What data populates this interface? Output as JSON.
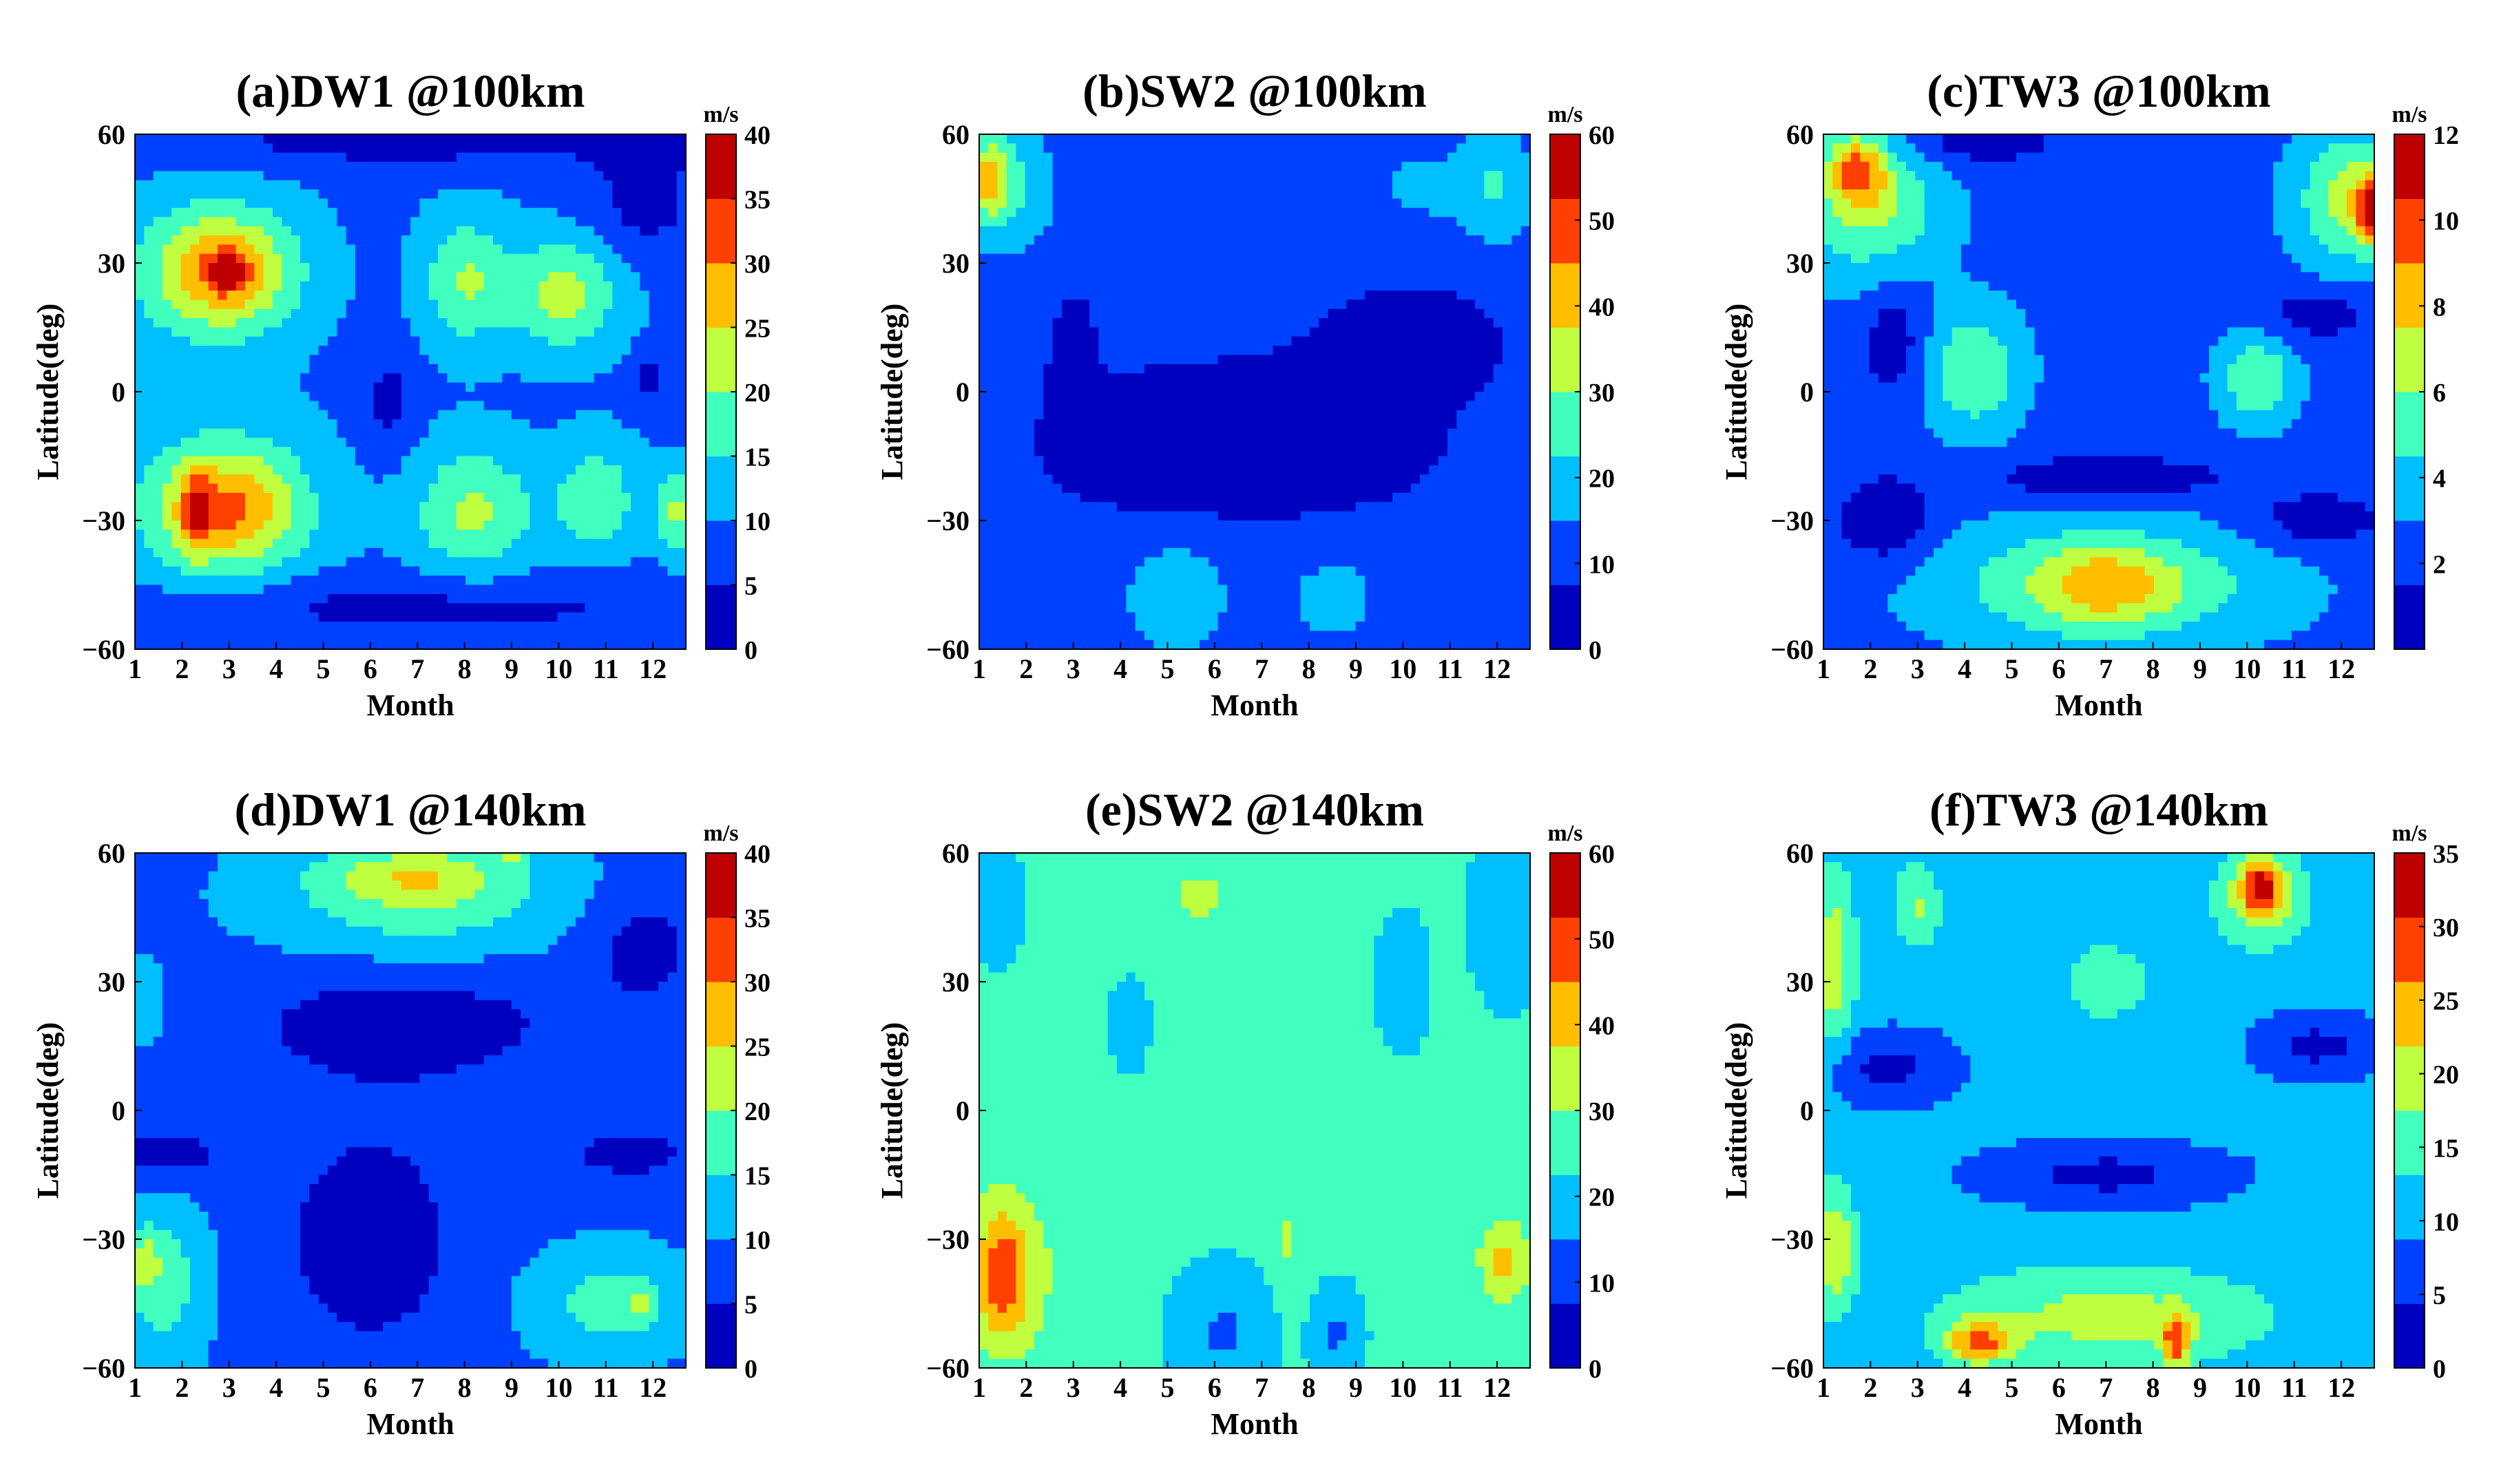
{
  "figure": {
    "colormap": "jet"
  },
  "chart_data": [
    {
      "id": "a",
      "type": "heatmap",
      "title": "(a)DW1 @100km",
      "xlabel": "Month",
      "ylabel": "Latitude(deg)",
      "xlim": [
        1,
        12.7
      ],
      "ylim": [
        -60,
        60
      ],
      "xticks": [
        "1",
        "2",
        "3",
        "4",
        "5",
        "6",
        "7",
        "8",
        "9",
        "10",
        "11",
        "12"
      ],
      "yticks": [
        "-60",
        "-30",
        "0",
        "30",
        "60"
      ],
      "colorbar": {
        "unit": "m/s",
        "min": 0,
        "max": 40,
        "ticks": [
          "0",
          "5",
          "10",
          "15",
          "20",
          "25",
          "30",
          "35",
          "40"
        ]
      },
      "background": 9,
      "blobs": [
        {
          "x": 1.0,
          "y": -58,
          "rx": 14,
          "ry": 5,
          "v": 0
        },
        {
          "x": 7.0,
          "y": -50,
          "rx": 6,
          "ry": 7,
          "v": -6
        },
        {
          "x": 7.0,
          "y": 58,
          "rx": 6,
          "ry": 6,
          "v": -6
        },
        {
          "x": 11.8,
          "y": 45,
          "rx": 1.2,
          "ry": 15,
          "v": -6
        },
        {
          "x": 2.7,
          "y": 28,
          "rx": 1.8,
          "ry": 17,
          "v": 14
        },
        {
          "x": 3.0,
          "y": 28,
          "rx": 1.2,
          "ry": 11,
          "v": 9
        },
        {
          "x": 3.0,
          "y": 28,
          "rx": 0.4,
          "ry": 4,
          "v": 12
        },
        {
          "x": 2.9,
          "y": -27,
          "rx": 1.9,
          "ry": 18,
          "v": 14
        },
        {
          "x": 3.0,
          "y": -27,
          "rx": 1.3,
          "ry": 11,
          "v": 9
        },
        {
          "x": 2.3,
          "y": -28,
          "rx": 0.3,
          "ry": 9,
          "v": 12
        },
        {
          "x": 8.0,
          "y": 26,
          "rx": 0.9,
          "ry": 15,
          "v": 11
        },
        {
          "x": 10.1,
          "y": 23,
          "rx": 1.2,
          "ry": 13,
          "v": 13
        },
        {
          "x": 8.2,
          "y": -28,
          "rx": 1.3,
          "ry": 15,
          "v": 12
        },
        {
          "x": 10.8,
          "y": -25,
          "rx": 0.9,
          "ry": 13,
          "v": 10
        },
        {
          "x": 12.5,
          "y": -28,
          "rx": 0.4,
          "ry": 10,
          "v": 12
        },
        {
          "x": 6.4,
          "y": -2,
          "rx": 0.5,
          "ry": 12,
          "v": -6
        },
        {
          "x": 11.9,
          "y": 3,
          "rx": 0.3,
          "ry": 6,
          "v": -6
        }
      ]
    },
    {
      "id": "b",
      "type": "heatmap",
      "title": "(b)SW2 @100km",
      "xlabel": "Month",
      "ylabel": "Latitude(deg)",
      "xlim": [
        1,
        12.7
      ],
      "ylim": [
        -60,
        60
      ],
      "xticks": [
        "1",
        "2",
        "3",
        "4",
        "5",
        "6",
        "7",
        "8",
        "9",
        "10",
        "11",
        "12"
      ],
      "yticks": [
        "-60",
        "-30",
        "0",
        "30",
        "60"
      ],
      "colorbar": {
        "unit": "m/s",
        "min": 0,
        "max": 60,
        "ticks": [
          "0",
          "10",
          "20",
          "30",
          "40",
          "50",
          "60"
        ]
      },
      "background": 10,
      "blobs": [
        {
          "x": 6.5,
          "y": -12,
          "rx": 4.0,
          "ry": 18,
          "v": -8
        },
        {
          "x": 10.2,
          "y": 12,
          "rx": 2.0,
          "ry": 13,
          "v": -6
        },
        {
          "x": 3.0,
          "y": 10,
          "rx": 0.5,
          "ry": 15,
          "v": -5
        },
        {
          "x": 1.6,
          "y": 48,
          "rx": 1.0,
          "ry": 16,
          "v": 14
        },
        {
          "x": 1.2,
          "y": 50,
          "rx": 0.4,
          "ry": 9,
          "v": 22
        },
        {
          "x": 12.0,
          "y": 48,
          "rx": 0.8,
          "ry": 14,
          "v": 13
        },
        {
          "x": 10.4,
          "y": 48,
          "rx": 1.0,
          "ry": 10,
          "v": 7
        },
        {
          "x": 5.2,
          "y": -48,
          "rx": 1.1,
          "ry": 13,
          "v": 12
        },
        {
          "x": 8.5,
          "y": -48,
          "rx": 1.1,
          "ry": 12,
          "v": 8
        },
        {
          "x": 1.4,
          "y": -45,
          "rx": 0.7,
          "ry": 14,
          "v": 5
        },
        {
          "x": 12.3,
          "y": -45,
          "rx": 0.5,
          "ry": 15,
          "v": 5
        }
      ]
    },
    {
      "id": "c",
      "type": "heatmap",
      "title": "(c)TW3 @100km",
      "xlabel": "Month",
      "ylabel": "Latitude(deg)",
      "xlim": [
        1,
        12.7
      ],
      "ylim": [
        -60,
        60
      ],
      "xticks": [
        "1",
        "2",
        "3",
        "4",
        "5",
        "6",
        "7",
        "8",
        "9",
        "10",
        "11",
        "12"
      ],
      "yticks": [
        "-60",
        "-30",
        "0",
        "30",
        "60"
      ],
      "colorbar": {
        "unit": "m/s",
        "min": 0,
        "max": 12,
        "ticks": [
          "2",
          "4",
          "6",
          "8",
          "10",
          "12"
        ]
      },
      "background": 2.5,
      "blobs": [
        {
          "x": 2.0,
          "y": 45,
          "rx": 1.5,
          "ry": 18,
          "v": 4.0
        },
        {
          "x": 1.7,
          "y": 52,
          "rx": 0.6,
          "ry": 8,
          "v": 4.5
        },
        {
          "x": 12.3,
          "y": 45,
          "rx": 1.2,
          "ry": 15,
          "v": 4.5
        },
        {
          "x": 12.6,
          "y": 42,
          "rx": 0.3,
          "ry": 7,
          "v": 5.5
        },
        {
          "x": 4.2,
          "y": 5,
          "rx": 1.0,
          "ry": 14,
          "v": 3.5
        },
        {
          "x": 10.2,
          "y": 3,
          "rx": 0.8,
          "ry": 10,
          "v": 3.5
        },
        {
          "x": 7.0,
          "y": -45,
          "rx": 3.5,
          "ry": 14,
          "v": 3.5
        },
        {
          "x": 7.0,
          "y": -45,
          "rx": 1.4,
          "ry": 9,
          "v": 3.0
        },
        {
          "x": 7.0,
          "y": -20,
          "rx": 2.5,
          "ry": 5,
          "v": -2.5
        },
        {
          "x": 2.5,
          "y": 12,
          "rx": 0.7,
          "ry": 14,
          "v": -2
        },
        {
          "x": 2.3,
          "y": -30,
          "rx": 1.0,
          "ry": 10,
          "v": -2.5
        },
        {
          "x": 4.0,
          "y": 58,
          "rx": 2.0,
          "ry": 6,
          "v": -2
        },
        {
          "x": 11.5,
          "y": 18,
          "rx": 1.2,
          "ry": 6,
          "v": -2
        },
        {
          "x": 11.5,
          "y": -30,
          "rx": 1.5,
          "ry": 7,
          "v": -2
        }
      ]
    },
    {
      "id": "d",
      "type": "heatmap",
      "title": "(d)DW1 @140km",
      "xlabel": "Month",
      "ylabel": "Latitude(deg)",
      "xlim": [
        1,
        12.7
      ],
      "ylim": [
        -60,
        60
      ],
      "xticks": [
        "1",
        "2",
        "3",
        "4",
        "5",
        "6",
        "7",
        "8",
        "9",
        "10",
        "11",
        "12"
      ],
      "yticks": [
        "-60",
        "-30",
        "0",
        "30",
        "60"
      ],
      "colorbar": {
        "unit": "m/s",
        "min": 0,
        "max": 40,
        "ticks": [
          "0",
          "5",
          "10",
          "15",
          "20",
          "25",
          "30",
          "35",
          "40"
        ]
      },
      "background": 9,
      "blobs": [
        {
          "x": 6.7,
          "y": 20,
          "rx": 3.5,
          "ry": 14,
          "v": -7
        },
        {
          "x": 6.0,
          "y": -30,
          "rx": 2.0,
          "ry": 28,
          "v": -7
        },
        {
          "x": 11.5,
          "y": -10,
          "rx": 1.5,
          "ry": 7,
          "v": -6
        },
        {
          "x": 1.7,
          "y": -10,
          "rx": 1.4,
          "ry": 7,
          "v": -6
        },
        {
          "x": 11.8,
          "y": 38,
          "rx": 1.2,
          "ry": 14,
          "v": -6
        },
        {
          "x": 7.0,
          "y": 50,
          "rx": 3.0,
          "ry": 14,
          "v": 10
        },
        {
          "x": 7.0,
          "y": 55,
          "rx": 1.8,
          "ry": 6,
          "v": 8
        },
        {
          "x": 9.0,
          "y": 60,
          "rx": 0.3,
          "ry": 2,
          "v": 14
        },
        {
          "x": 1.6,
          "y": -40,
          "rx": 0.9,
          "ry": 18,
          "v": 9
        },
        {
          "x": 1.2,
          "y": -35,
          "rx": 0.3,
          "ry": 7,
          "v": 8
        },
        {
          "x": 11.0,
          "y": -45,
          "rx": 1.6,
          "ry": 12,
          "v": 8
        },
        {
          "x": 11.8,
          "y": -45,
          "rx": 0.3,
          "ry": 5,
          "v": 8
        },
        {
          "x": 1.2,
          "y": 25,
          "rx": 0.5,
          "ry": 10,
          "v": 4
        }
      ]
    },
    {
      "id": "e",
      "type": "heatmap",
      "title": "(e)SW2 @140km",
      "xlabel": "Month",
      "ylabel": "Latitude(deg)",
      "xlim": [
        1,
        12.7
      ],
      "ylim": [
        -60,
        60
      ],
      "xticks": [
        "1",
        "2",
        "3",
        "4",
        "5",
        "6",
        "7",
        "8",
        "9",
        "10",
        "11",
        "12"
      ],
      "yticks": [
        "-60",
        "-30",
        "0",
        "30",
        "60"
      ],
      "colorbar": {
        "unit": "m/s",
        "min": 0,
        "max": 60,
        "ticks": [
          "0",
          "10",
          "20",
          "30",
          "40",
          "50",
          "60"
        ]
      },
      "background": 24,
      "blobs": [
        {
          "x": 1.6,
          "y": -38,
          "rx": 1.2,
          "ry": 22,
          "v": 10
        },
        {
          "x": 1.5,
          "y": -38,
          "rx": 0.5,
          "ry": 14,
          "v": 18
        },
        {
          "x": 12.2,
          "y": -35,
          "rx": 0.9,
          "ry": 16,
          "v": 8
        },
        {
          "x": 12.1,
          "y": -35,
          "rx": 0.3,
          "ry": 5,
          "v": 12
        },
        {
          "x": 5.7,
          "y": 50,
          "rx": 1.0,
          "ry": 12,
          "v": 7
        },
        {
          "x": 7.6,
          "y": -30,
          "rx": 0.3,
          "ry": 14,
          "v": 7
        },
        {
          "x": 6.2,
          "y": -52,
          "rx": 1.0,
          "ry": 14,
          "v": -10
        },
        {
          "x": 8.6,
          "y": -52,
          "rx": 0.5,
          "ry": 10,
          "v": -10
        },
        {
          "x": 10.0,
          "y": 30,
          "rx": 0.5,
          "ry": 14,
          "v": -8
        },
        {
          "x": 4.2,
          "y": 20,
          "rx": 0.4,
          "ry": 10,
          "v": -6
        },
        {
          "x": 1.4,
          "y": 48,
          "rx": 0.5,
          "ry": 14,
          "v": -6
        },
        {
          "x": 12.2,
          "y": 45,
          "rx": 0.7,
          "ry": 18,
          "v": -8
        }
      ]
    },
    {
      "id": "f",
      "type": "heatmap",
      "title": "(f)TW3 @140km",
      "xlabel": "Month",
      "ylabel": "Latitude(deg)",
      "xlim": [
        1,
        12.7
      ],
      "ylim": [
        -60,
        60
      ],
      "xticks": [
        "1",
        "2",
        "3",
        "4",
        "5",
        "6",
        "7",
        "8",
        "9",
        "10",
        "11",
        "12"
      ],
      "yticks": [
        "-60",
        "-30",
        "0",
        "30",
        "60"
      ],
      "colorbar": {
        "unit": "m/s",
        "min": 0,
        "max": 35,
        "ticks": [
          "0",
          "5",
          "10",
          "15",
          "20",
          "25",
          "30",
          "35"
        ]
      },
      "background": 10,
      "blobs": [
        {
          "x": 2.3,
          "y": 10,
          "rx": 1.4,
          "ry": 8,
          "v": -7
        },
        {
          "x": 7.0,
          "y": -15,
          "rx": 2.5,
          "ry": 7,
          "v": -7
        },
        {
          "x": 11.5,
          "y": 15,
          "rx": 1.2,
          "ry": 7,
          "v": -7
        },
        {
          "x": 1.2,
          "y": 35,
          "rx": 0.5,
          "ry": 22,
          "v": 10
        },
        {
          "x": 1.2,
          "y": -32,
          "rx": 0.5,
          "ry": 14,
          "v": 12
        },
        {
          "x": 7.0,
          "y": -48,
          "rx": 3.5,
          "ry": 12,
          "v": 9
        },
        {
          "x": 4.3,
          "y": -54,
          "rx": 0.7,
          "ry": 5,
          "v": 15
        },
        {
          "x": 8.5,
          "y": -54,
          "rx": 0.3,
          "ry": 6,
          "v": 15
        },
        {
          "x": 10.3,
          "y": 50,
          "rx": 1.0,
          "ry": 12,
          "v": 10
        },
        {
          "x": 10.3,
          "y": 52,
          "rx": 0.4,
          "ry": 6,
          "v": 16
        },
        {
          "x": 7.0,
          "y": 30,
          "rx": 1.0,
          "ry": 10,
          "v": 6
        },
        {
          "x": 3.0,
          "y": 48,
          "rx": 0.5,
          "ry": 10,
          "v": 8
        }
      ]
    }
  ]
}
